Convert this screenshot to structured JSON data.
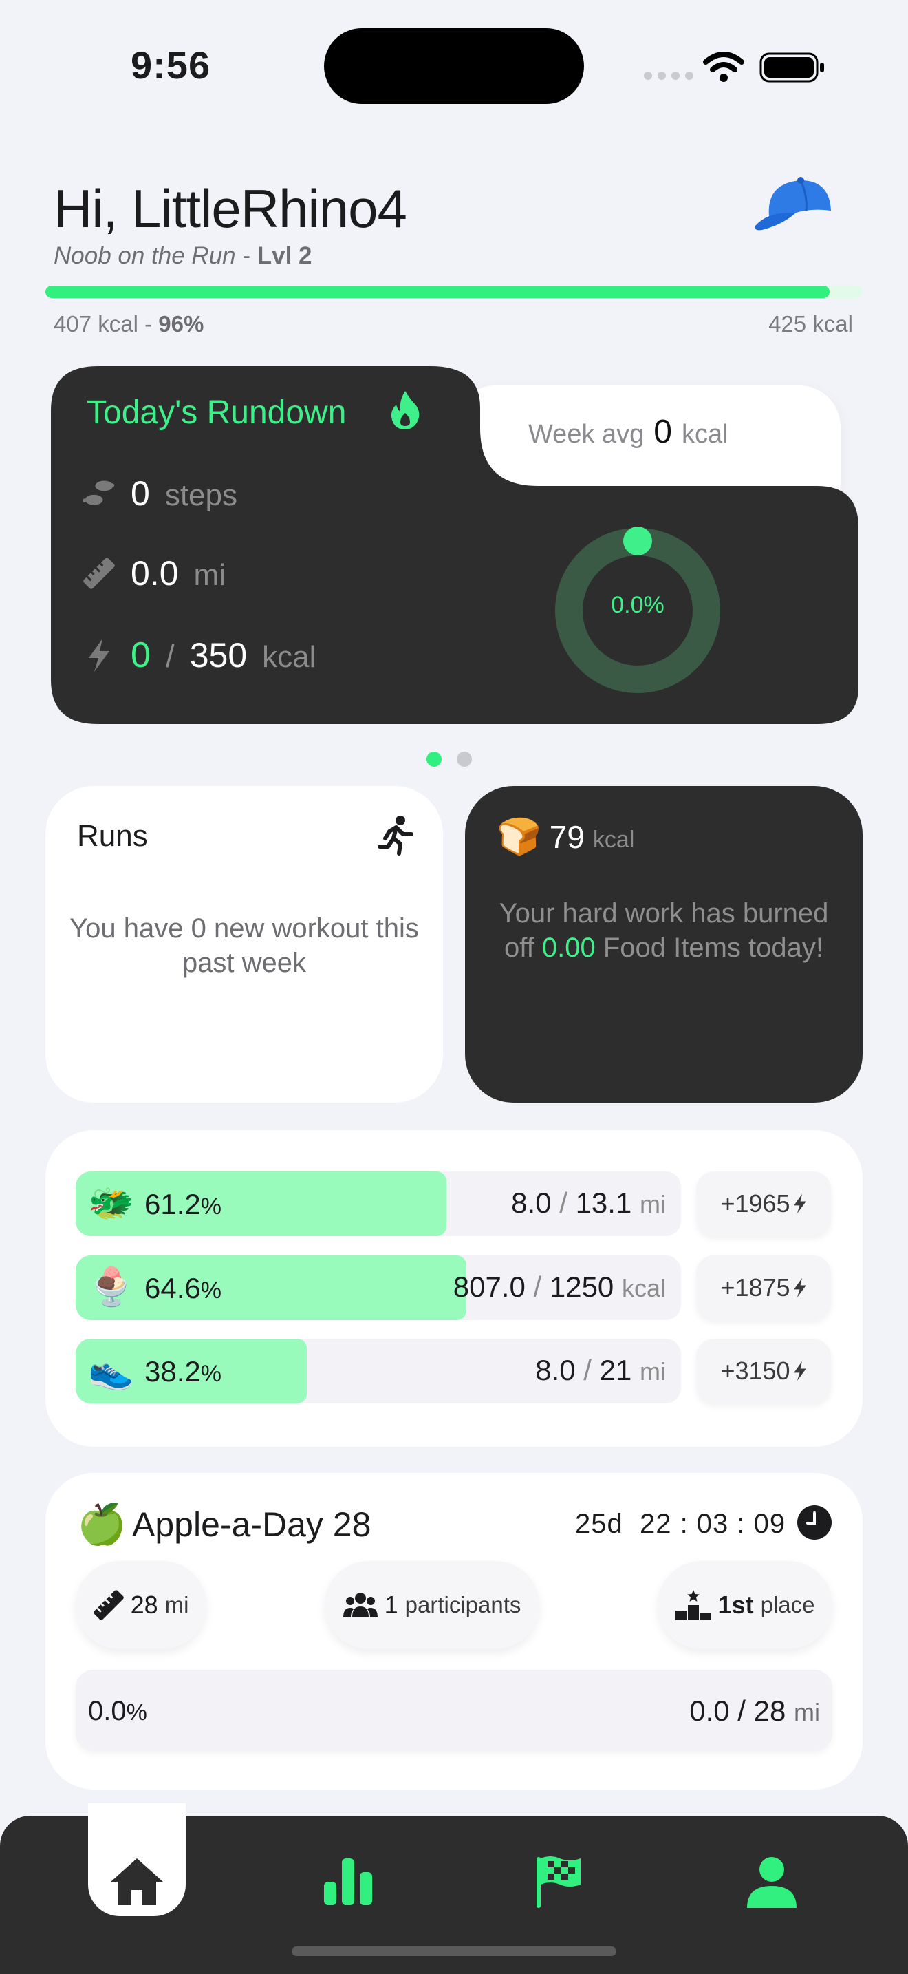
{
  "status_bar": {
    "time": "9:56"
  },
  "header": {
    "greeting": "Hi, LittleRhino4",
    "rank_title": "Noob on the Run",
    "level_sep": " - ",
    "level": "Lvl 2",
    "avatar_icon": "blue-cap-icon",
    "progress": {
      "current": "407 kcal",
      "sep": " - ",
      "percent": "96%",
      "percent_value": 96,
      "target": "425 kcal"
    }
  },
  "rundown": {
    "title": "Today's Rundown",
    "title_icon": "flame-icon",
    "steps": {
      "value": "0",
      "unit": "steps",
      "icon": "footsteps-icon"
    },
    "distance": {
      "value": "0.0",
      "unit": "mi",
      "icon": "ruler-icon"
    },
    "calories": {
      "value": "0",
      "sep": "/",
      "goal": "350",
      "unit": "kcal",
      "icon": "bolt-icon"
    },
    "ring_percent": "0.0%",
    "ring_value": 0,
    "week_avg": {
      "label": "Week avg",
      "value": "0",
      "unit": "kcal"
    }
  },
  "carousel": {
    "pages": 2,
    "active": 0
  },
  "runs": {
    "title": "Runs",
    "icon": "running-person-icon",
    "message": "You have 0 new workout this past week"
  },
  "food": {
    "emoji": "🍞",
    "icon": "bread-icon",
    "kcal": "79",
    "unit": "kcal",
    "msg_pre": "Your hard work has burned off ",
    "msg_value": "0.00",
    "msg_post": " Food Items today!"
  },
  "goals": [
    {
      "emoji": "🐲",
      "icon": "dragon-icon",
      "percent": "61.2",
      "pct_sign": "%",
      "fill": 0.612,
      "current": "8.0",
      "sep": "/",
      "target": "13.1",
      "unit": "mi",
      "bonus": "+1965"
    },
    {
      "emoji": "🍨",
      "icon": "ice-cream-icon",
      "percent": "64.6",
      "pct_sign": "%",
      "fill": 0.646,
      "current": "807.0",
      "sep": "/",
      "target": "1250",
      "unit": "kcal",
      "bonus": "+1875"
    },
    {
      "emoji": "👟",
      "icon": "sneaker-icon",
      "percent": "38.2",
      "pct_sign": "%",
      "fill": 0.382,
      "current": "8.0",
      "sep": "/",
      "target": "21",
      "unit": "mi",
      "bonus": "+3150"
    }
  ],
  "challenge": {
    "emoji": "🍏",
    "icon": "green-apple-icon",
    "title": "Apple-a-Day 28",
    "countdown": "25d  22 : 03 : 09",
    "distance": {
      "value": "28",
      "unit": "mi"
    },
    "participants": {
      "value": "1",
      "unit": "participants"
    },
    "place": {
      "value": "1st",
      "unit": "place"
    },
    "progress_percent": "0.0",
    "pct_sign": "%",
    "progress": "0.0 / 28",
    "progress_unit": "mi"
  },
  "tabbar": {
    "tabs": [
      {
        "name": "home",
        "icon": "home-icon",
        "active": true
      },
      {
        "name": "stats",
        "icon": "bar-chart-icon",
        "active": false
      },
      {
        "name": "challenges",
        "icon": "checkered-flag-icon",
        "active": false
      },
      {
        "name": "profile",
        "icon": "person-icon",
        "active": false
      }
    ]
  },
  "colors": {
    "accent_green": "#31f07f",
    "light_green": "#98fbbb",
    "dark_card": "#2d2d2d",
    "background": "#f2f3f8"
  }
}
